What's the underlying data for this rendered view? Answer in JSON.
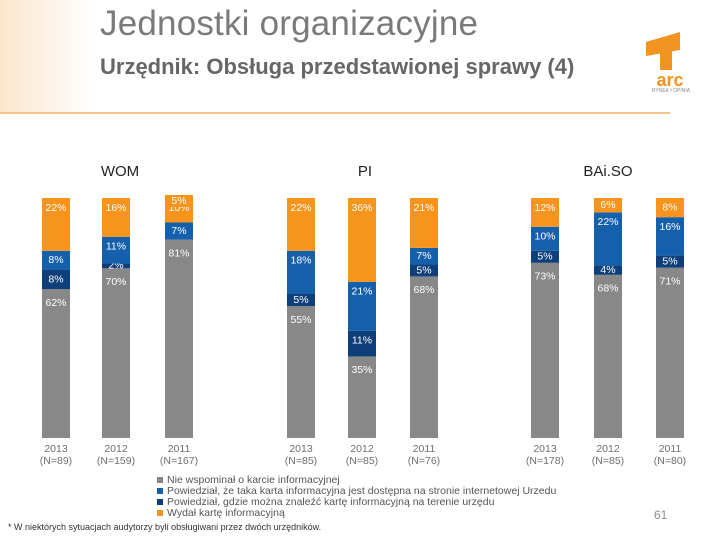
{
  "header": {
    "title": "Jednostki organizacyjne",
    "subtitle": "Urzędnik: Obsługa przedstawionej sprawy (4)"
  },
  "logo": {
    "text": "arc",
    "tagline": "RYNEK I OPINIA"
  },
  "colors": {
    "accent": "#f39322",
    "nie_wspominal": "#888888",
    "strona": "#1560ad",
    "teren": "#0e3f7a",
    "wydal": "#f7941d"
  },
  "chart_data": {
    "type": "bar",
    "stacked": true,
    "percent": true,
    "ylim": [
      0,
      100
    ],
    "groups": [
      {
        "name": "WOM",
        "bars": [
          {
            "year": "2013",
            "n": "(N=89)",
            "values": [
              62,
              8,
              8,
              22
            ],
            "labels": [
              "62%",
              "8%",
              "8%",
              "22%"
            ]
          },
          {
            "year": "2012",
            "n": "(N=159)",
            "values": [
              70,
              2,
              11,
              16
            ],
            "labels": [
              "70%",
              "2%",
              "11%",
              "16%"
            ]
          },
          {
            "year": "2011",
            "n": "(N=167)",
            "values": [
              81,
              0,
              7,
              10
            ],
            "labels": [
              "81%",
              "",
              "7%",
              "10%"
            ],
            "extra": "5%"
          }
        ]
      },
      {
        "name": "PI",
        "bars": [
          {
            "year": "2013",
            "n": "(N=85)",
            "values": [
              55,
              5,
              18,
              22
            ],
            "labels": [
              "55%",
              "5%",
              "18%",
              "22%"
            ]
          },
          {
            "year": "2012",
            "n": "(N=85)",
            "values": [
              35,
              11,
              21,
              36
            ],
            "labels": [
              "35%",
              "11%",
              "21%",
              "36%"
            ]
          },
          {
            "year": "2011",
            "n": "(N=76)",
            "values": [
              68,
              5,
              7,
              21
            ],
            "labels": [
              "68%",
              "5%",
              "7%",
              "21%"
            ]
          }
        ]
      },
      {
        "name": "BAi.SO",
        "bars": [
          {
            "year": "2013",
            "n": "(N=178)",
            "values": [
              73,
              5,
              10,
              12
            ],
            "labels": [
              "73%",
              "5%",
              "10%",
              "12%"
            ]
          },
          {
            "year": "2012",
            "n": "(N=85)",
            "values": [
              68,
              4,
              22,
              6
            ],
            "labels": [
              "68%",
              "4%",
              "22%",
              "6%"
            ]
          },
          {
            "year": "2011",
            "n": "(N=80)",
            "values": [
              71,
              5,
              16,
              8
            ],
            "labels": [
              "71%",
              "5%",
              "16%",
              "8%"
            ]
          }
        ]
      }
    ],
    "series": [
      "Nie wspominał o karcie informacyjnej",
      "Powiedział, gdzie można znaleźć kartę informacyjną na terenie urzędu",
      "Powiedział, że taka karta informacyjna jest dostępna na stronie internetowej Urzędu",
      "Wydał kartę informacyjną"
    ]
  },
  "legend": [
    "Nie wspominał o karcie informacyjnej",
    "Powiedział, że taka karta informacyjna jest dostępna na stronie internetowej Urzedu",
    "Powiedział, gdzie można znaleźć kartę informacyjną na terenie urzędu",
    "Wydał kartę informacyjną"
  ],
  "footnote": "* W niektórych sytuacjach audytorzy byli obsługiwani przez dwóch urzędników.",
  "page_number": "61"
}
